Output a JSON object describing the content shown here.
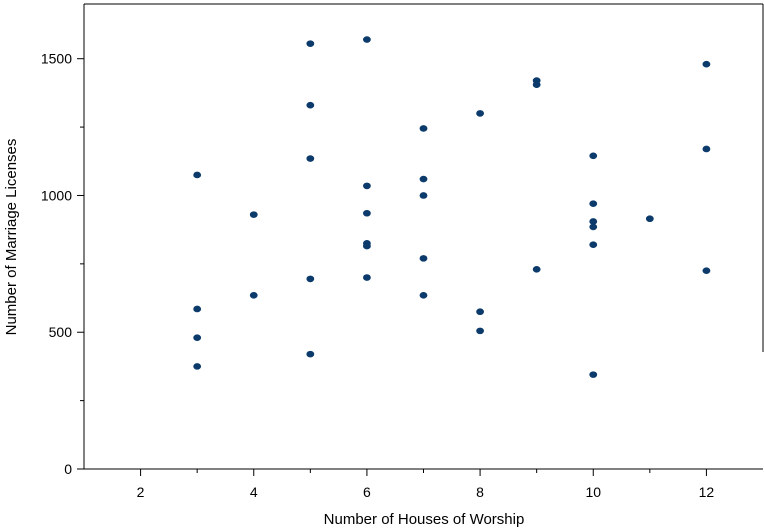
{
  "chart_data": {
    "type": "scatter",
    "title": "",
    "xlabel": "Number of Houses of Worship",
    "ylabel": "Number of Marriage Licenses",
    "xlim": [
      1,
      13
    ],
    "ylim": [
      0,
      1700
    ],
    "xticks": [
      2,
      4,
      6,
      8,
      10,
      12
    ],
    "yticks": [
      0,
      500,
      1000,
      1500
    ],
    "xtick_labels": [
      "2",
      "4",
      "6",
      "8",
      "10",
      "12"
    ],
    "ytick_labels": [
      "0",
      "500",
      "1000",
      "1500"
    ],
    "grid": false,
    "marker_color": "#0b3a6b",
    "points": [
      {
        "x": 3,
        "y": 1075
      },
      {
        "x": 3,
        "y": 585
      },
      {
        "x": 3,
        "y": 480
      },
      {
        "x": 3,
        "y": 375
      },
      {
        "x": 4,
        "y": 930
      },
      {
        "x": 4,
        "y": 635
      },
      {
        "x": 5,
        "y": 1555
      },
      {
        "x": 5,
        "y": 1330
      },
      {
        "x": 5,
        "y": 1135
      },
      {
        "x": 5,
        "y": 695
      },
      {
        "x": 5,
        "y": 420
      },
      {
        "x": 6,
        "y": 1570
      },
      {
        "x": 6,
        "y": 1035
      },
      {
        "x": 6,
        "y": 935
      },
      {
        "x": 6,
        "y": 825
      },
      {
        "x": 6,
        "y": 815
      },
      {
        "x": 6,
        "y": 700
      },
      {
        "x": 7,
        "y": 1245
      },
      {
        "x": 7,
        "y": 1060
      },
      {
        "x": 7,
        "y": 1000
      },
      {
        "x": 7,
        "y": 770
      },
      {
        "x": 7,
        "y": 635
      },
      {
        "x": 8,
        "y": 1300
      },
      {
        "x": 8,
        "y": 575
      },
      {
        "x": 8,
        "y": 505
      },
      {
        "x": 9,
        "y": 1420
      },
      {
        "x": 9,
        "y": 1405
      },
      {
        "x": 9,
        "y": 730
      },
      {
        "x": 10,
        "y": 1145
      },
      {
        "x": 10,
        "y": 970
      },
      {
        "x": 10,
        "y": 905
      },
      {
        "x": 10,
        "y": 885
      },
      {
        "x": 10,
        "y": 820
      },
      {
        "x": 10,
        "y": 345
      },
      {
        "x": 11,
        "y": 915
      },
      {
        "x": 12,
        "y": 1480
      },
      {
        "x": 12,
        "y": 1170
      },
      {
        "x": 12,
        "y": 725
      }
    ]
  }
}
